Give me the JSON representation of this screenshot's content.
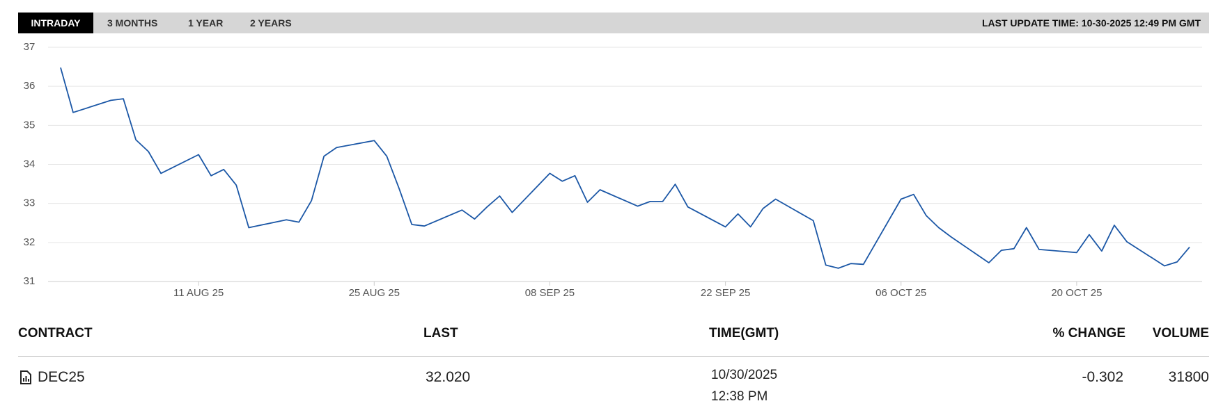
{
  "tabs": [
    "INTRADAY",
    "3 MONTHS",
    "1 YEAR",
    "2 YEARS"
  ],
  "last_update": "LAST UPDATE TIME: 10-30-2025 12:49 PM GMT",
  "chart_data": {
    "type": "line",
    "color": "#1b57a6",
    "grid": true,
    "x": [
      "2025-07-31",
      "2025-08-01",
      "2025-08-04",
      "2025-08-05",
      "2025-08-06",
      "2025-08-07",
      "2025-08-08",
      "2025-08-11",
      "2025-08-12",
      "2025-08-13",
      "2025-08-14",
      "2025-08-15",
      "2025-08-18",
      "2025-08-19",
      "2025-08-20",
      "2025-08-21",
      "2025-08-22",
      "2025-08-25",
      "2025-08-26",
      "2025-08-27",
      "2025-08-28",
      "2025-08-29",
      "2025-09-01",
      "2025-09-02",
      "2025-09-03",
      "2025-09-04",
      "2025-09-05",
      "2025-09-08",
      "2025-09-09",
      "2025-09-10",
      "2025-09-11",
      "2025-09-12",
      "2025-09-15",
      "2025-09-16",
      "2025-09-17",
      "2025-09-18",
      "2025-09-19",
      "2025-09-22",
      "2025-09-23",
      "2025-09-24",
      "2025-09-25",
      "2025-09-26",
      "2025-09-29",
      "2025-09-30",
      "2025-10-01",
      "2025-10-02",
      "2025-10-03",
      "2025-10-06",
      "2025-10-07",
      "2025-10-08",
      "2025-10-09",
      "2025-10-10",
      "2025-10-13",
      "2025-10-14",
      "2025-10-15",
      "2025-10-16",
      "2025-10-17",
      "2025-10-20",
      "2025-10-21",
      "2025-10-22",
      "2025-10-23",
      "2025-10-24",
      "2025-10-27",
      "2025-10-28",
      "2025-10-29"
    ],
    "values": [
      36.48,
      35.33,
      35.64,
      35.68,
      34.63,
      34.33,
      33.77,
      34.25,
      33.71,
      33.87,
      33.47,
      32.38,
      32.58,
      32.52,
      33.07,
      34.21,
      34.43,
      34.61,
      34.21,
      33.37,
      32.46,
      32.42,
      32.83,
      32.6,
      32.91,
      33.19,
      32.77,
      33.77,
      33.57,
      33.71,
      33.03,
      33.35,
      32.93,
      33.05,
      33.05,
      33.49,
      32.91,
      32.4,
      32.73,
      32.4,
      32.87,
      33.11,
      32.56,
      31.42,
      31.34,
      31.46,
      31.44,
      33.11,
      33.23,
      32.69,
      32.38,
      32.14,
      31.48,
      31.8,
      31.84,
      32.38,
      31.82,
      31.74,
      32.2,
      31.78,
      32.44,
      32.02,
      31.4,
      31.5,
      31.88
    ],
    "xlim": [
      "2025-07-30",
      "2025-10-30"
    ],
    "xticks": [
      {
        "value": "2025-08-11",
        "label": "11 AUG 25"
      },
      {
        "value": "2025-08-25",
        "label": "25 AUG 25"
      },
      {
        "value": "2025-09-08",
        "label": "08 SEP 25"
      },
      {
        "value": "2025-09-22",
        "label": "22 SEP 25"
      },
      {
        "value": "2025-10-06",
        "label": "06 OCT 25"
      },
      {
        "value": "2025-10-20",
        "label": "20 OCT 25"
      }
    ],
    "ylim": [
      31,
      37
    ],
    "yticks": [
      31,
      32,
      33,
      34,
      35,
      36,
      37
    ]
  },
  "table": {
    "headers": [
      "CONTRACT",
      "LAST",
      "TIME(GMT)",
      "% CHANGE",
      "VOLUME"
    ],
    "rows": [
      [
        "DEC25",
        "32.020",
        [
          "10/30/2025",
          "12:38 PM"
        ],
        "-0.302",
        "31800"
      ]
    ]
  }
}
